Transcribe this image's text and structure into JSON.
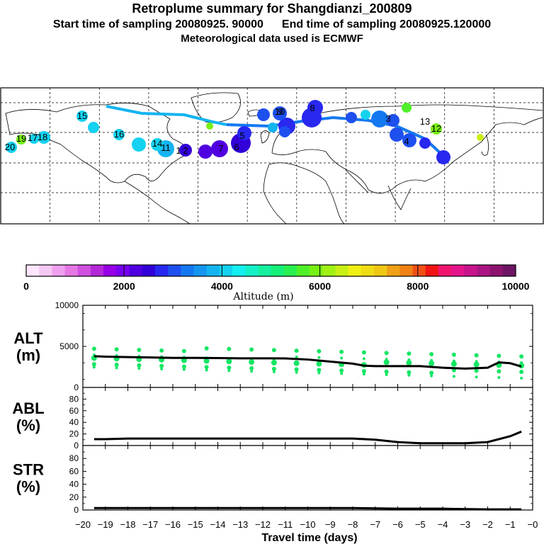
{
  "header": {
    "title": "Retroplume summary for Shangdianzi_200809",
    "start": "Start time of sampling 20080925. 90000",
    "end": "End time of sampling 20080925.120000",
    "met": "Meteorological data used is ECMWF"
  },
  "colorbar": {
    "title": "Altitude (m)",
    "ticks": [
      "0",
      "2000",
      "4000",
      "6000",
      "8000",
      "10000"
    ],
    "colors": [
      "#ffe6ff",
      "#f5c8f5",
      "#eea0ee",
      "#e678e6",
      "#d050e0",
      "#b428d8",
      "#9600e6",
      "#7800f0",
      "#5000e0",
      "#3200d8",
      "#2828f0",
      "#1e50f0",
      "#1478f0",
      "#1496f0",
      "#14b4f0",
      "#14d2f0",
      "#14f0f0",
      "#14f0c8",
      "#14f0a0",
      "#14f078",
      "#28f050",
      "#50f028",
      "#78f014",
      "#a0f014",
      "#c8f014",
      "#f0f014",
      "#f0dc14",
      "#f0c814",
      "#f0a014",
      "#f08214",
      "#f05014",
      "#f01414",
      "#f0146e",
      "#e6148c",
      "#c8148c",
      "#aa1482",
      "#8c146e",
      "#6e1464"
    ]
  },
  "map": {
    "trajectory_numbers": [
      "6",
      "7",
      "2",
      "1",
      "8",
      "5",
      "9",
      "10",
      "3",
      "4",
      "20",
      "19",
      "18",
      "17",
      "16",
      "15",
      "14",
      "13",
      "12",
      "11"
    ]
  },
  "panels": {
    "alt": {
      "label1": "ALT",
      "label2": "(m)",
      "yticks": [
        "10000",
        "5000",
        "0"
      ]
    },
    "abl": {
      "label1": "ABL",
      "label2": "(%)",
      "yticks": [
        "80",
        "60",
        "40",
        "20",
        "0"
      ]
    },
    "str": {
      "label1": "STR",
      "label2": "(%)",
      "yticks": [
        "80",
        "60",
        "40",
        "20",
        "0"
      ]
    }
  },
  "xaxis": {
    "label": "Travel time (days)",
    "ticks": [
      "−20",
      "−19",
      "−18",
      "−17",
      "−16",
      "−15",
      "−14",
      "−13",
      "−12",
      "−11",
      "−10",
      "−9",
      "−8",
      "−7",
      "−6",
      "−5",
      "−4",
      "−3",
      "−2",
      "−1",
      "−0"
    ]
  },
  "chart_data": [
    {
      "type": "line",
      "title": "ALT (m)",
      "xlabel": "Travel time (days)",
      "ylabel": "ALT (m)",
      "ylim": [
        0,
        10000
      ],
      "xlim": [
        -20,
        0
      ],
      "series": [
        {
          "name": "mean altitude",
          "x": [
            -19.5,
            -19,
            -18,
            -17,
            -16,
            -15,
            -14,
            -13,
            -12,
            -11,
            -10,
            -9,
            -8,
            -7.5,
            -7,
            -6,
            -5,
            -4,
            -3,
            -2,
            -1.5,
            -1,
            -0.5
          ],
          "values": [
            3800,
            3750,
            3700,
            3650,
            3600,
            3600,
            3580,
            3550,
            3550,
            3530,
            3400,
            3150,
            2900,
            2650,
            2600,
            2600,
            2600,
            2400,
            2300,
            2400,
            3050,
            2950,
            2550
          ]
        }
      ]
    },
    {
      "type": "line",
      "title": "ABL (%)",
      "xlabel": "Travel time (days)",
      "ylabel": "ABL (%)",
      "ylim": [
        0,
        100
      ],
      "xlim": [
        -20,
        0
      ],
      "series": [
        {
          "name": "ABL fraction",
          "x": [
            -19.5,
            -19,
            -18,
            -17,
            -16,
            -15,
            -14,
            -13,
            -12,
            -11,
            -10,
            -9,
            -8,
            -7,
            -6,
            -5,
            -4,
            -3,
            -2,
            -1,
            -0.5
          ],
          "values": [
            11,
            11,
            12,
            12,
            12,
            12,
            12,
            12,
            12,
            12,
            12,
            12,
            12,
            10,
            6,
            4,
            4,
            4,
            6,
            16,
            24
          ]
        }
      ]
    },
    {
      "type": "line",
      "title": "STR (%)",
      "xlabel": "Travel time (days)",
      "ylabel": "STR (%)",
      "ylim": [
        0,
        100
      ],
      "xlim": [
        -20,
        0
      ],
      "series": [
        {
          "name": "STR fraction",
          "x": [
            -19.5,
            -18,
            -16,
            -14,
            -12,
            -10,
            -8,
            -6,
            -4,
            -2,
            -0.5
          ],
          "values": [
            3,
            3,
            3,
            3,
            3,
            3,
            3,
            2,
            2,
            1,
            1
          ]
        }
      ]
    }
  ]
}
